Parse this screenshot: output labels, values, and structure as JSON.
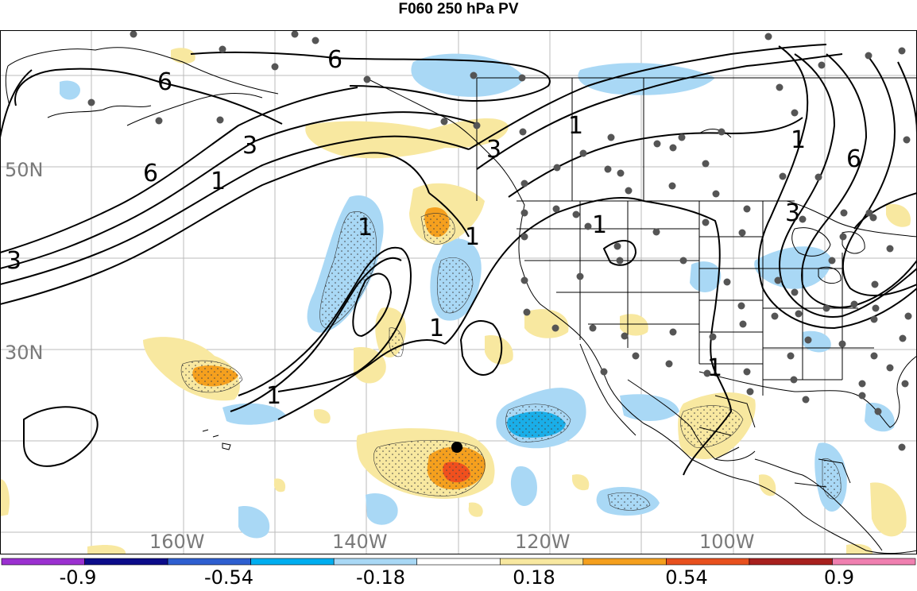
{
  "title": "F060 250 hPa PV",
  "map": {
    "latitude_labels": [
      "50N",
      "30N"
    ],
    "longitude_labels": [
      "160W",
      "140W",
      "120W",
      "100W"
    ],
    "contour_labels": [
      "6",
      "6",
      "6",
      "3",
      "3",
      "3",
      "3",
      "1",
      "1",
      "1",
      "1",
      "1",
      "1",
      "1",
      "1",
      "1",
      "6"
    ],
    "colors": {
      "light_blue": "#a9d8f5",
      "blue": "#1aaee8",
      "light_yellow": "#f8e8a0",
      "orange": "#f5a01e",
      "red_orange": "#f0501e",
      "contour": "#000000",
      "station_dot": "#555555",
      "grid": "#bbbbbb",
      "border": "#000000"
    }
  },
  "colorbar": {
    "labels": [
      "-0.9",
      "-0.54",
      "-0.18",
      "0.18",
      "0.54",
      "0.9"
    ],
    "colors": [
      "#9b30d0",
      "#0c0c8a",
      "#2e5fd0",
      "#00aef0",
      "#a9d8f5",
      "#ffffff",
      "#f8e8a0",
      "#f5a01e",
      "#e8501e",
      "#a8201e",
      "#f080b0"
    ]
  }
}
